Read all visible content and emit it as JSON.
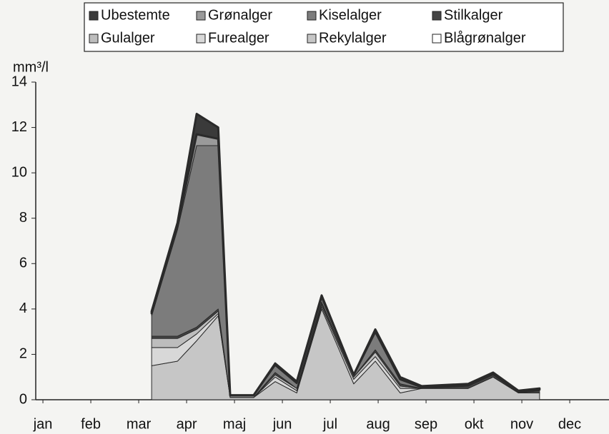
{
  "chart_data": {
    "type": "stacked-area",
    "y_label": "mm³/l",
    "x": [
      2.27,
      2.81,
      3.21,
      3.66,
      3.91,
      4.4,
      4.85,
      5.3,
      5.82,
      6.49,
      6.94,
      7.46,
      7.91,
      8.88,
      9.4,
      9.93,
      10.37
    ],
    "xlim": [
      -0.15,
      11.82
    ],
    "xticks": [
      {
        "value": 0,
        "label": "jan"
      },
      {
        "value": 1,
        "label": "feb"
      },
      {
        "value": 2,
        "label": "mar"
      },
      {
        "value": 3,
        "label": "apr"
      },
      {
        "value": 4,
        "label": "maj"
      },
      {
        "value": 5,
        "label": "jun"
      },
      {
        "value": 6,
        "label": "jul"
      },
      {
        "value": 7,
        "label": "aug"
      },
      {
        "value": 8,
        "label": "sep"
      },
      {
        "value": 9,
        "label": "okt"
      },
      {
        "value": 10,
        "label": "nov"
      },
      {
        "value": 11,
        "label": "dec"
      }
    ],
    "ylim": [
      0,
      14
    ],
    "yticks": [
      0,
      2,
      4,
      6,
      8,
      10,
      12,
      14
    ],
    "grid": false,
    "series": [
      {
        "name": "Ubestemte",
        "color": "#3a3a3a",
        "values": [
          0.1,
          0.1,
          0.9,
          0.5,
          0,
          0,
          0.05,
          0.05,
          0.05,
          0,
          0.1,
          0.1,
          0.05,
          0.05,
          0.05,
          0.05,
          0.05
        ]
      },
      {
        "name": "Grønalger",
        "color": "#9a9a9a",
        "values": [
          0.1,
          0.2,
          0.5,
          0.3,
          0,
          0,
          0.05,
          0.05,
          0.05,
          0,
          0,
          0,
          0,
          0,
          0,
          0,
          0
        ]
      },
      {
        "name": "Kiselalger",
        "color": "#7c7c7c",
        "values": [
          0.9,
          4.7,
          8.0,
          7.2,
          0.1,
          0.1,
          0.3,
          0.2,
          0.2,
          0.1,
          0.8,
          0.2,
          0.05,
          0.05,
          0.05,
          0.05,
          0.05
        ]
      },
      {
        "name": "Stilkalger",
        "color": "#444444",
        "values": [
          0.1,
          0.1,
          0.1,
          0.1,
          0,
          0,
          0.1,
          0,
          0.1,
          0,
          0.1,
          0.1,
          0,
          0.1,
          0.1,
          0,
          0.1
        ]
      },
      {
        "name": "Gulalger",
        "color": "#bdbdbd",
        "values": [
          0.4,
          0.4,
          0.2,
          0.1,
          0,
          0,
          0.1,
          0.1,
          0.1,
          0.1,
          0.2,
          0.1,
          0,
          0,
          0,
          0,
          0
        ]
      },
      {
        "name": "Furealger",
        "color": "#d8d8d8",
        "values": [
          0.8,
          0.6,
          0.3,
          0.1,
          0,
          0,
          0.2,
          0.1,
          0.1,
          0.2,
          0.2,
          0.2,
          0,
          0,
          0,
          0,
          0
        ]
      },
      {
        "name": "Rekylalger",
        "color": "#c6c6c6",
        "values": [
          1.5,
          1.7,
          2.6,
          3.7,
          0.1,
          0.1,
          0.8,
          0.3,
          4.0,
          0.7,
          1.7,
          0.3,
          0.5,
          0.5,
          1.0,
          0.3,
          0.3
        ]
      },
      {
        "name": "Blågrønalger",
        "color": "#ffffff",
        "values": [
          0,
          0,
          0,
          0,
          0,
          0,
          0,
          0,
          0,
          0,
          0,
          0,
          0,
          0,
          0,
          0,
          0
        ]
      }
    ]
  }
}
